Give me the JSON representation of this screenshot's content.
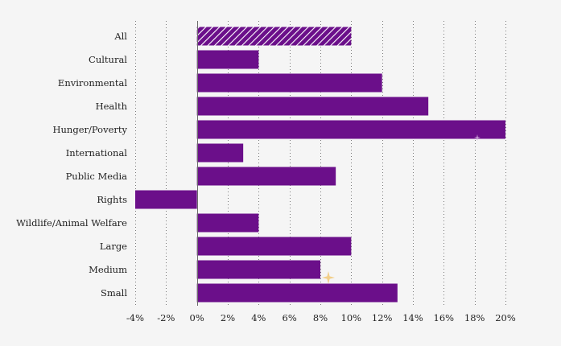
{
  "chart_data": {
    "type": "bar",
    "orientation": "horizontal",
    "categories": [
      "All",
      "Cultural",
      "Environmental",
      "Health",
      "Hunger/Poverty",
      "International",
      "Public Media",
      "Rights",
      "Wildlife/Animal Welfare",
      "Large",
      "Medium",
      "Small"
    ],
    "values": [
      10,
      4,
      12,
      15,
      20,
      3,
      9,
      -4,
      4,
      10,
      8,
      13
    ],
    "highlight": [
      "All"
    ],
    "xlim": [
      -4,
      20
    ],
    "xticks": [
      -4,
      -2,
      0,
      2,
      4,
      6,
      8,
      10,
      12,
      14,
      16,
      18,
      20
    ],
    "xtick_labels": [
      "-4%",
      "-2%",
      "0%",
      "2%",
      "4%",
      "6%",
      "8%",
      "10%",
      "12%",
      "14%",
      "16%",
      "18%",
      "20%"
    ],
    "title": "",
    "xlabel": "",
    "ylabel": "",
    "grid": true,
    "legend": "none",
    "bar_color": "#6b0f8a",
    "hatch_color": "#ffffff"
  }
}
